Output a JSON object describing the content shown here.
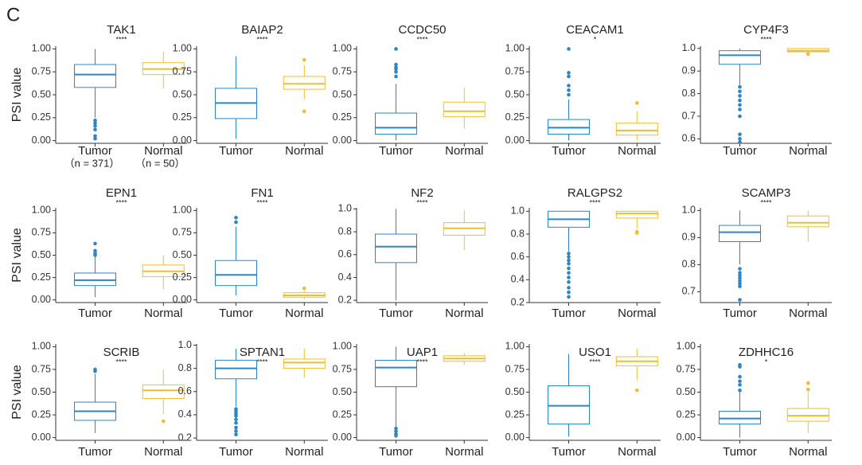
{
  "panel_label": "C",
  "chart_data": [
    {
      "type": "box",
      "title": "TAK1",
      "annotation": "****",
      "ylabel": "PSI value",
      "categories": [
        "Tumor",
        "Normal"
      ],
      "sample_sizes": [
        "（n = 371）",
        "（n = 50）"
      ],
      "colors": [
        "#2b86c8",
        "#f0be2c"
      ],
      "ylim": [
        -0.03,
        1.03
      ],
      "yticks": [
        {
          "value": 0,
          "label": "0.00"
        },
        {
          "value": 0.25,
          "label": "0.25"
        },
        {
          "value": 0.5,
          "label": "0.50"
        },
        {
          "value": 0.75,
          "label": "0.75"
        },
        {
          "value": 1,
          "label": "1.00"
        }
      ],
      "boxes": [
        {
          "whislo": 0.25,
          "q1": 0.58,
          "med": 0.72,
          "q3": 0.83,
          "whishi": 1.0,
          "fliers": [
            0.22,
            0.19,
            0.16,
            0.12,
            0.05,
            0.02
          ]
        },
        {
          "whislo": 0.57,
          "q1": 0.72,
          "med": 0.78,
          "q3": 0.85,
          "whishi": 0.97,
          "fliers": []
        }
      ]
    },
    {
      "type": "box",
      "title": "BAIAP2",
      "annotation": "****",
      "categories": [
        "Tumor",
        "Normal"
      ],
      "colors": [
        "#2b86c8",
        "#f0be2c"
      ],
      "ylim": [
        -0.03,
        1.03
      ],
      "yticks": [
        {
          "value": 0,
          "label": "0.00"
        },
        {
          "value": 0.25,
          "label": "0.25"
        },
        {
          "value": 0.5,
          "label": "0.50"
        },
        {
          "value": 0.75,
          "label": "0.75"
        },
        {
          "value": 1,
          "label": "1.00"
        }
      ],
      "boxes": [
        {
          "whislo": 0.02,
          "q1": 0.24,
          "med": 0.41,
          "q3": 0.57,
          "whishi": 0.92,
          "fliers": []
        },
        {
          "whislo": 0.45,
          "q1": 0.56,
          "med": 0.62,
          "q3": 0.7,
          "whishi": 0.82,
          "fliers": [
            0.88,
            0.32
          ]
        }
      ]
    },
    {
      "type": "box",
      "title": "CCDC50",
      "annotation": "****",
      "categories": [
        "Tumor",
        "Normal"
      ],
      "colors": [
        "#2b86c8",
        "#f0be2c"
      ],
      "ylim": [
        -0.03,
        1.03
      ],
      "yticks": [
        {
          "value": 0,
          "label": "0.00"
        },
        {
          "value": 0.25,
          "label": "0.25"
        },
        {
          "value": 0.5,
          "label": "0.50"
        },
        {
          "value": 0.75,
          "label": "0.75"
        },
        {
          "value": 1,
          "label": "1.00"
        }
      ],
      "boxes": [
        {
          "whislo": 0.0,
          "q1": 0.07,
          "med": 0.14,
          "q3": 0.3,
          "whishi": 0.62,
          "fliers": [
            0.7,
            0.75,
            0.78,
            0.8,
            0.83,
            1.0
          ]
        },
        {
          "whislo": 0.13,
          "q1": 0.26,
          "med": 0.32,
          "q3": 0.42,
          "whishi": 0.58,
          "fliers": []
        }
      ]
    },
    {
      "type": "box",
      "title": "CEACAM1",
      "annotation": "*",
      "categories": [
        "Tumor",
        "Normal"
      ],
      "colors": [
        "#2b86c8",
        "#f0be2c"
      ],
      "ylim": [
        -0.03,
        1.03
      ],
      "yticks": [
        {
          "value": 0,
          "label": "0.00"
        },
        {
          "value": 0.25,
          "label": "0.25"
        },
        {
          "value": 0.5,
          "label": "0.50"
        },
        {
          "value": 0.75,
          "label": "0.75"
        },
        {
          "value": 1,
          "label": "1.00"
        }
      ],
      "boxes": [
        {
          "whislo": 0.0,
          "q1": 0.07,
          "med": 0.14,
          "q3": 0.23,
          "whishi": 0.45,
          "fliers": [
            0.5,
            0.55,
            0.6,
            0.7,
            0.74,
            1.0
          ]
        },
        {
          "whislo": 0.0,
          "q1": 0.06,
          "med": 0.11,
          "q3": 0.19,
          "whishi": 0.32,
          "fliers": [
            0.41
          ]
        }
      ]
    },
    {
      "type": "box",
      "title": "CYP4F3",
      "annotation": "****",
      "categories": [
        "Tumor",
        "Normal"
      ],
      "colors": [
        "#2b86c8",
        "#f0be2c"
      ],
      "ylim": [
        0.58,
        1.01
      ],
      "yticks": [
        0.6,
        0.7,
        0.8,
        0.9,
        {
          "value": 1,
          "label": "1.0"
        }
      ],
      "boxes": [
        {
          "whislo": 0.84,
          "q1": 0.93,
          "med": 0.97,
          "q3": 0.99,
          "whishi": 1.0,
          "fliers": [
            0.83,
            0.81,
            0.79,
            0.77,
            0.75,
            0.73,
            0.7,
            0.62,
            0.6,
            0.585
          ]
        },
        {
          "whislo": 0.98,
          "q1": 0.985,
          "med": 0.99,
          "q3": 1.0,
          "whishi": 1.0,
          "fliers": [
            0.975
          ]
        }
      ]
    },
    {
      "type": "box",
      "title": "EPN1",
      "annotation": "****",
      "ylabel": "PSI value",
      "categories": [
        "Tumor",
        "Normal"
      ],
      "colors": [
        "#2b86c8",
        "#f0be2c"
      ],
      "ylim": [
        -0.03,
        1.03
      ],
      "yticks": [
        {
          "value": 0,
          "label": "0.00"
        },
        {
          "value": 0.25,
          "label": "0.25"
        },
        {
          "value": 0.5,
          "label": "0.50"
        },
        {
          "value": 0.75,
          "label": "0.75"
        },
        {
          "value": 1,
          "label": "1.00"
        }
      ],
      "boxes": [
        {
          "whislo": 0.03,
          "q1": 0.16,
          "med": 0.22,
          "q3": 0.3,
          "whishi": 0.48,
          "fliers": [
            0.5,
            0.52,
            0.55,
            0.63
          ]
        },
        {
          "whislo": 0.12,
          "q1": 0.26,
          "med": 0.32,
          "q3": 0.39,
          "whishi": 0.5,
          "fliers": []
        }
      ]
    },
    {
      "type": "box",
      "title": "FN1",
      "annotation": "****",
      "categories": [
        "Tumor",
        "Normal"
      ],
      "colors": [
        "#2b86c8",
        "#f0be2c"
      ],
      "ylim": [
        -0.03,
        1.03
      ],
      "yticks": [
        {
          "value": 0,
          "label": "0.00"
        },
        {
          "value": 0.25,
          "label": "0.25"
        },
        {
          "value": 0.5,
          "label": "0.50"
        },
        {
          "value": 0.75,
          "label": "0.75"
        },
        {
          "value": 1,
          "label": "1.00"
        }
      ],
      "boxes": [
        {
          "whislo": 0.05,
          "q1": 0.16,
          "med": 0.28,
          "q3": 0.44,
          "whishi": 0.82,
          "fliers": [
            0.87,
            0.92
          ]
        },
        {
          "whislo": 0.01,
          "q1": 0.03,
          "med": 0.05,
          "q3": 0.08,
          "whishi": 0.1,
          "fliers": [
            0.13
          ]
        }
      ]
    },
    {
      "type": "box",
      "title": "NF2",
      "annotation": "****",
      "categories": [
        "Tumor",
        "Normal"
      ],
      "colors": [
        "#2b86c8",
        "#f0be2c"
      ],
      "ylim": [
        0.18,
        1.01
      ],
      "yticks": [
        0.2,
        0.4,
        0.6,
        0.8,
        {
          "value": 1,
          "label": "1.0"
        }
      ],
      "boxes": [
        {
          "whislo": 0.2,
          "q1": 0.53,
          "med": 0.67,
          "q3": 0.78,
          "whishi": 1.0,
          "fliers": []
        },
        {
          "whislo": 0.64,
          "q1": 0.77,
          "med": 0.83,
          "q3": 0.88,
          "whishi": 0.99,
          "fliers": []
        }
      ]
    },
    {
      "type": "box",
      "title": "RALGPS2",
      "annotation": "****",
      "categories": [
        "Tumor",
        "Normal"
      ],
      "colors": [
        "#2b86c8",
        "#f0be2c"
      ],
      "ylim": [
        0.2,
        1.03
      ],
      "yticks": [
        0.2,
        0.4,
        0.6,
        0.8,
        {
          "value": 1,
          "label": "1.0"
        }
      ],
      "boxes": [
        {
          "whislo": 0.65,
          "q1": 0.86,
          "med": 0.93,
          "q3": 1.0,
          "whishi": 1.0,
          "fliers": [
            0.63,
            0.6,
            0.57,
            0.54,
            0.5,
            0.46,
            0.42,
            0.38,
            0.33,
            0.29,
            0.25
          ]
        },
        {
          "whislo": 0.85,
          "q1": 0.94,
          "med": 0.98,
          "q3": 1.0,
          "whishi": 1.0,
          "fliers": [
            0.82,
            0.81
          ]
        }
      ]
    },
    {
      "type": "box",
      "title": "SCAMP3",
      "annotation": "****",
      "categories": [
        "Tumor",
        "Normal"
      ],
      "colors": [
        "#2b86c8",
        "#f0be2c"
      ],
      "ylim": [
        0.66,
        1.01
      ],
      "yticks": [
        0.7,
        0.8,
        0.9,
        {
          "value": 1,
          "label": "1.0"
        }
      ],
      "boxes": [
        {
          "whislo": 0.8,
          "q1": 0.885,
          "med": 0.92,
          "q3": 0.945,
          "whishi": 1.0,
          "fliers": [
            0.785,
            0.77,
            0.76,
            0.75,
            0.74,
            0.73,
            0.72,
            0.67
          ]
        },
        {
          "whislo": 0.885,
          "q1": 0.94,
          "med": 0.955,
          "q3": 0.98,
          "whishi": 1.0,
          "fliers": []
        }
      ]
    },
    {
      "type": "box",
      "title": "SCRIB",
      "annotation": "****",
      "ylabel": "PSI value",
      "categories": [
        "Tumor",
        "Normal"
      ],
      "colors": [
        "#2b86c8",
        "#f0be2c"
      ],
      "ylim": [
        -0.03,
        1.03
      ],
      "yticks": [
        {
          "value": 0,
          "label": "0.00"
        },
        {
          "value": 0.25,
          "label": "0.25"
        },
        {
          "value": 0.5,
          "label": "0.50"
        },
        {
          "value": 0.75,
          "label": "0.75"
        },
        {
          "value": 1,
          "label": "1.00"
        }
      ],
      "boxes": [
        {
          "whislo": 0.05,
          "q1": 0.19,
          "med": 0.29,
          "q3": 0.39,
          "whishi": 0.7,
          "fliers": [
            0.73,
            0.75
          ]
        },
        {
          "whislo": 0.26,
          "q1": 0.43,
          "med": 0.52,
          "q3": 0.58,
          "whishi": 0.75,
          "fliers": [
            0.18
          ]
        }
      ]
    },
    {
      "type": "box",
      "title": "SPTAN1",
      "annotation": "****",
      "categories": [
        "Tumor",
        "Normal"
      ],
      "colors": [
        "#2b86c8",
        "#f0be2c"
      ],
      "ylim": [
        0.18,
        1.01
      ],
      "yticks": [
        0.2,
        0.4,
        0.6,
        0.8,
        {
          "value": 1,
          "label": "1.0"
        }
      ],
      "boxes": [
        {
          "whislo": 0.47,
          "q1": 0.71,
          "med": 0.8,
          "q3": 0.87,
          "whishi": 0.97,
          "fliers": [
            0.45,
            0.43,
            0.41,
            0.39,
            0.36,
            0.33,
            0.29,
            0.26,
            0.23
          ]
        },
        {
          "whislo": 0.72,
          "q1": 0.8,
          "med": 0.85,
          "q3": 0.88,
          "whishi": 0.97,
          "fliers": []
        }
      ]
    },
    {
      "type": "box",
      "title": "UAP1",
      "annotation": "****",
      "categories": [
        "Tumor",
        "Normal"
      ],
      "colors": [
        "#2b86c8",
        "#f0be2c"
      ],
      "ylim": [
        -0.03,
        1.03
      ],
      "yticks": [
        {
          "value": 0,
          "label": "0.00"
        },
        {
          "value": 0.25,
          "label": "0.25"
        },
        {
          "value": 0.5,
          "label": "0.50"
        },
        {
          "value": 0.75,
          "label": "0.75"
        },
        {
          "value": 1,
          "label": "1.00"
        }
      ],
      "boxes": [
        {
          "whislo": 0.12,
          "q1": 0.56,
          "med": 0.77,
          "q3": 0.85,
          "whishi": 1.0,
          "fliers": [
            0.1,
            0.07,
            0.04,
            0.02
          ]
        },
        {
          "whislo": 0.8,
          "q1": 0.84,
          "med": 0.87,
          "q3": 0.9,
          "whishi": 0.93,
          "fliers": []
        }
      ]
    },
    {
      "type": "box",
      "title": "USO1",
      "annotation": "****",
      "categories": [
        "Tumor",
        "Normal"
      ],
      "colors": [
        "#2b86c8",
        "#f0be2c"
      ],
      "ylim": [
        -0.03,
        1.03
      ],
      "yticks": [
        {
          "value": 0,
          "label": "0.00"
        },
        {
          "value": 0.25,
          "label": "0.25"
        },
        {
          "value": 0.5,
          "label": "0.50"
        },
        {
          "value": 0.75,
          "label": "0.75"
        },
        {
          "value": 1,
          "label": "1.00"
        }
      ],
      "boxes": [
        {
          "whislo": 0.01,
          "q1": 0.15,
          "med": 0.35,
          "q3": 0.57,
          "whishi": 0.92,
          "fliers": []
        },
        {
          "whislo": 0.63,
          "q1": 0.79,
          "med": 0.84,
          "q3": 0.89,
          "whishi": 0.98,
          "fliers": [
            0.52
          ]
        }
      ]
    },
    {
      "type": "box",
      "title": "ZDHHC16",
      "annotation": "*",
      "categories": [
        "Tumor",
        "Normal"
      ],
      "colors": [
        "#2b86c8",
        "#f0be2c"
      ],
      "ylim": [
        -0.03,
        1.03
      ],
      "yticks": [
        {
          "value": 0,
          "label": "0.00"
        },
        {
          "value": 0.25,
          "label": "0.25"
        },
        {
          "value": 0.5,
          "label": "0.50"
        },
        {
          "value": 0.75,
          "label": "0.75"
        },
        {
          "value": 1,
          "label": "1.00"
        }
      ],
      "boxes": [
        {
          "whislo": 0.0,
          "q1": 0.15,
          "med": 0.21,
          "q3": 0.29,
          "whishi": 0.5,
          "fliers": [
            0.52,
            0.58,
            0.62,
            0.67,
            0.78,
            0.8
          ]
        },
        {
          "whislo": 0.05,
          "q1": 0.18,
          "med": 0.24,
          "q3": 0.32,
          "whishi": 0.5,
          "fliers": [
            0.53,
            0.6
          ]
        }
      ]
    }
  ]
}
